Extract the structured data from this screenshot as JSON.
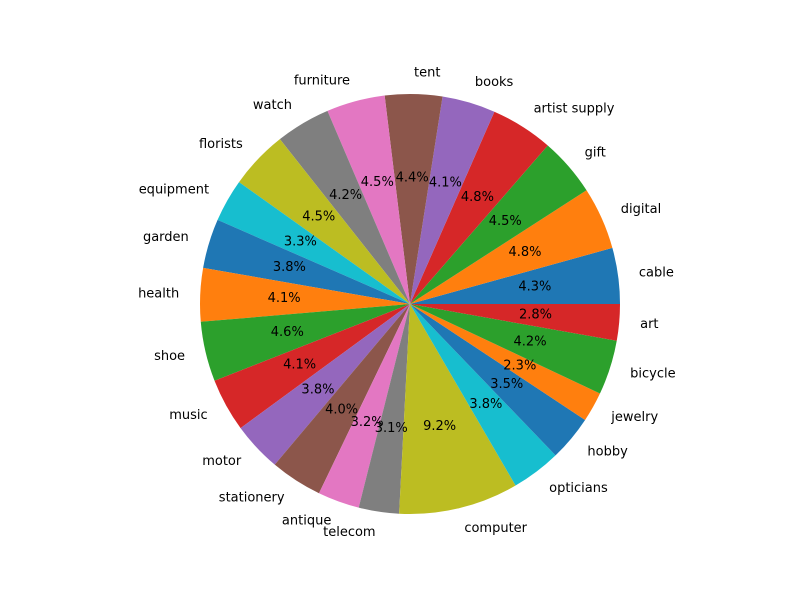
{
  "chart_data": {
    "type": "pie",
    "title": "",
    "start_angle": 0,
    "direction": "counterclockwise",
    "slices": [
      {
        "label": "cable",
        "value": 4.3,
        "pct_label": "4.3%",
        "color": "#1f77b4"
      },
      {
        "label": "digital",
        "value": 4.8,
        "pct_label": "4.8%",
        "color": "#ff7f0e"
      },
      {
        "label": "gift",
        "value": 4.5,
        "pct_label": "4.5%",
        "color": "#2ca02c"
      },
      {
        "label": "artist supply",
        "value": 4.8,
        "pct_label": "4.8%",
        "color": "#d62728"
      },
      {
        "label": "books",
        "value": 4.1,
        "pct_label": "4.1%",
        "color": "#9467bd"
      },
      {
        "label": "tent",
        "value": 4.4,
        "pct_label": "4.4%",
        "color": "#8c564b"
      },
      {
        "label": "furniture",
        "value": 4.5,
        "pct_label": "4.5%",
        "color": "#e377c2"
      },
      {
        "label": "watch",
        "value": 4.2,
        "pct_label": "4.2%",
        "color": "#7f7f7f"
      },
      {
        "label": "florists",
        "value": 4.5,
        "pct_label": "4.5%",
        "color": "#bcbd22"
      },
      {
        "label": "equipment",
        "value": 3.3,
        "pct_label": "3.3%",
        "color": "#17becf"
      },
      {
        "label": "garden",
        "value": 3.8,
        "pct_label": "3.8%",
        "color": "#1f77b4"
      },
      {
        "label": "health",
        "value": 4.1,
        "pct_label": "4.1%",
        "color": "#ff7f0e"
      },
      {
        "label": "shoe",
        "value": 4.6,
        "pct_label": "4.6%",
        "color": "#2ca02c"
      },
      {
        "label": "music",
        "value": 4.1,
        "pct_label": "4.1%",
        "color": "#d62728"
      },
      {
        "label": "motor",
        "value": 3.8,
        "pct_label": "3.8%",
        "color": "#9467bd"
      },
      {
        "label": "stationery",
        "value": 4.0,
        "pct_label": "4.0%",
        "color": "#8c564b"
      },
      {
        "label": "antique",
        "value": 3.2,
        "pct_label": "3.2%",
        "color": "#e377c2"
      },
      {
        "label": "telecom",
        "value": 3.1,
        "pct_label": "3.1%",
        "color": "#7f7f7f"
      },
      {
        "label": "computer",
        "value": 9.2,
        "pct_label": "9.2%",
        "color": "#bcbd22"
      },
      {
        "label": "opticians",
        "value": 3.8,
        "pct_label": "3.8%",
        "color": "#17becf"
      },
      {
        "label": "hobby",
        "value": 3.5,
        "pct_label": "3.5%",
        "color": "#1f77b4"
      },
      {
        "label": "jewelry",
        "value": 2.3,
        "pct_label": "2.3%",
        "color": "#ff7f0e"
      },
      {
        "label": "bicycle",
        "value": 4.2,
        "pct_label": "4.2%",
        "color": "#2ca02c"
      },
      {
        "label": "art",
        "value": 2.8,
        "pct_label": "2.8%",
        "color": "#d62728"
      }
    ]
  }
}
